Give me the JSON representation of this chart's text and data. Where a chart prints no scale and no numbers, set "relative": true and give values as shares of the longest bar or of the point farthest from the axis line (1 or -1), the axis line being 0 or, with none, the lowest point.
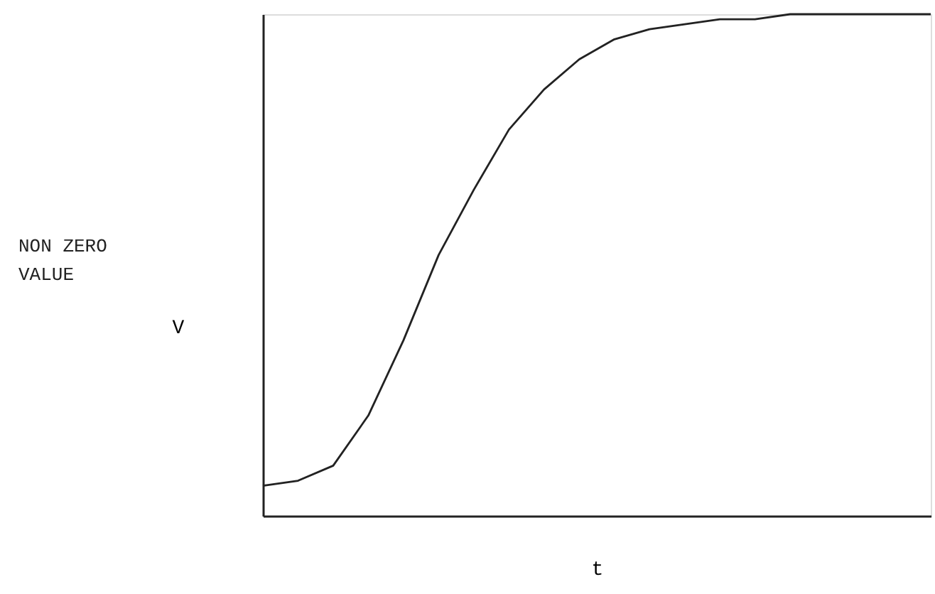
{
  "chart_data": {
    "type": "line",
    "relative": true,
    "xlabel": "t",
    "ylabel": "V",
    "annotations": [
      "NON ZERO\nVALUE"
    ],
    "categories": [
      null,
      null,
      null,
      null,
      null,
      null,
      null,
      null,
      null,
      null,
      null,
      null,
      null,
      null,
      null,
      null,
      null,
      null,
      null,
      null
    ],
    "series": [
      {
        "color": "#222222",
        "values": [
          0.06,
          0.07,
          0.1,
          0.2,
          0.35,
          0.52,
          0.65,
          0.77,
          0.85,
          0.91,
          0.95,
          0.97,
          0.98,
          0.99,
          0.99,
          1.0,
          1.0,
          1.0,
          1.0,
          1.0
        ]
      }
    ],
    "marker": "none",
    "line_style": "solid"
  }
}
